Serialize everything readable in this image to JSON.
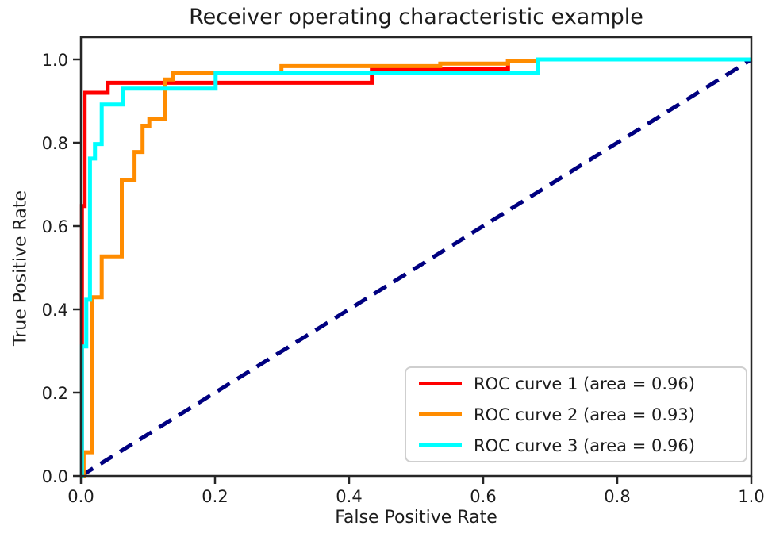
{
  "chart_data": {
    "type": "line",
    "title": "Receiver operating characteristic example",
    "xlabel": "False Positive Rate",
    "ylabel": "True Positive Rate",
    "xlim": [
      0.0,
      1.0
    ],
    "ylim": [
      0.0,
      1.05
    ],
    "grid": false,
    "legend_position": "lower right",
    "x_tick_values": [
      0.0,
      0.2,
      0.4,
      0.6,
      0.8,
      1.0
    ],
    "x_tick_labels": [
      "0.0",
      "0.2",
      "0.4",
      "0.6",
      "0.8",
      "1.0"
    ],
    "y_tick_values": [
      0.0,
      0.2,
      0.4,
      0.6,
      0.8,
      1.0
    ],
    "y_tick_labels": [
      "0.0",
      "0.2",
      "0.4",
      "0.6",
      "0.8",
      "1.0"
    ],
    "series": [
      {
        "name": "ROC curve 1 (area = 0.96)",
        "color": "#ff0000",
        "line_style": "solid",
        "line_width": 5,
        "points": [
          [
            0.0,
            0.0
          ],
          [
            0.0015,
            0.0
          ],
          [
            0.0015,
            0.648
          ],
          [
            0.0056,
            0.648
          ],
          [
            0.0056,
            0.92
          ],
          [
            0.04,
            0.92
          ],
          [
            0.04,
            0.944
          ],
          [
            0.434,
            0.944
          ],
          [
            0.434,
            0.978
          ],
          [
            0.637,
            0.978
          ],
          [
            0.637,
            0.997
          ],
          [
            0.682,
            0.997
          ],
          [
            0.682,
            1.0
          ],
          [
            1.0,
            1.0
          ]
        ]
      },
      {
        "name": "ROC curve 2 (area = 0.93)",
        "color": "#ff8c00",
        "line_style": "solid",
        "line_width": 5,
        "points": [
          [
            0.0,
            0.0
          ],
          [
            0.004,
            0.0
          ],
          [
            0.004,
            0.057
          ],
          [
            0.017,
            0.057
          ],
          [
            0.017,
            0.429
          ],
          [
            0.031,
            0.429
          ],
          [
            0.031,
            0.527
          ],
          [
            0.061,
            0.527
          ],
          [
            0.061,
            0.711
          ],
          [
            0.08,
            0.711
          ],
          [
            0.08,
            0.778
          ],
          [
            0.092,
            0.778
          ],
          [
            0.092,
            0.841
          ],
          [
            0.102,
            0.841
          ],
          [
            0.102,
            0.857
          ],
          [
            0.125,
            0.857
          ],
          [
            0.125,
            0.952
          ],
          [
            0.137,
            0.952
          ],
          [
            0.137,
            0.968
          ],
          [
            0.299,
            0.968
          ],
          [
            0.299,
            0.984
          ],
          [
            0.536,
            0.984
          ],
          [
            0.536,
            0.99
          ],
          [
            0.637,
            0.99
          ],
          [
            0.637,
            0.997
          ],
          [
            0.682,
            0.997
          ],
          [
            0.682,
            1.0
          ],
          [
            1.0,
            1.0
          ]
        ]
      },
      {
        "name": "ROC curve 3 (area = 0.96)",
        "color": "#00ffff",
        "line_style": "solid",
        "line_width": 5,
        "points": [
          [
            0.0,
            0.0
          ],
          [
            0.0015,
            0.0
          ],
          [
            0.0015,
            0.311
          ],
          [
            0.008,
            0.311
          ],
          [
            0.008,
            0.423
          ],
          [
            0.0135,
            0.423
          ],
          [
            0.0135,
            0.762
          ],
          [
            0.021,
            0.762
          ],
          [
            0.021,
            0.797
          ],
          [
            0.031,
            0.797
          ],
          [
            0.031,
            0.892
          ],
          [
            0.063,
            0.892
          ],
          [
            0.063,
            0.93
          ],
          [
            0.201,
            0.93
          ],
          [
            0.201,
            0.968
          ],
          [
            0.682,
            0.968
          ],
          [
            0.682,
            1.0
          ],
          [
            1.0,
            1.0
          ]
        ]
      }
    ],
    "reference_line": {
      "name": "chance diagonal",
      "color": "#000080",
      "line_style": "dashed",
      "line_width": 5,
      "points": [
        [
          0.0,
          0.0
        ],
        [
          1.0,
          1.0
        ]
      ]
    }
  }
}
